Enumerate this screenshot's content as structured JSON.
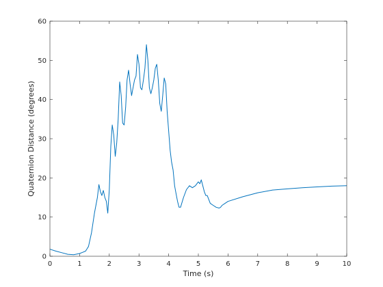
{
  "chart_data": {
    "type": "line",
    "title": "",
    "xlabel": "Time (s)",
    "ylabel": "Quaternion Distance (degrees)",
    "xlim": [
      0,
      10
    ],
    "ylim": [
      0,
      60
    ],
    "xticks": [
      0,
      1,
      2,
      3,
      4,
      5,
      6,
      7,
      8,
      9,
      10
    ],
    "yticks": [
      0,
      10,
      20,
      30,
      40,
      50,
      60
    ],
    "grid": false,
    "legend": "none",
    "series": [
      {
        "color": "#0072BD",
        "x": [
          0,
          0.2,
          0.4,
          0.6,
          0.8,
          1.0,
          1.1,
          1.2,
          1.3,
          1.4,
          1.5,
          1.6,
          1.65,
          1.7,
          1.75,
          1.8,
          1.85,
          1.9,
          1.95,
          2.0,
          2.05,
          2.1,
          2.15,
          2.2,
          2.25,
          2.3,
          2.35,
          2.4,
          2.45,
          2.5,
          2.55,
          2.6,
          2.65,
          2.7,
          2.75,
          2.8,
          2.85,
          2.9,
          2.95,
          3.0,
          3.05,
          3.1,
          3.15,
          3.2,
          3.25,
          3.3,
          3.35,
          3.4,
          3.45,
          3.5,
          3.55,
          3.6,
          3.65,
          3.7,
          3.75,
          3.8,
          3.85,
          3.9,
          3.95,
          4.0,
          4.05,
          4.1,
          4.15,
          4.2,
          4.25,
          4.3,
          4.35,
          4.4,
          4.5,
          4.6,
          4.7,
          4.8,
          4.9,
          5.0,
          5.05,
          5.1,
          5.15,
          5.2,
          5.25,
          5.3,
          5.4,
          5.5,
          5.6,
          5.7,
          5.75,
          5.8,
          5.9,
          6.0,
          6.5,
          7.0,
          7.5,
          8.0,
          8.5,
          9.0,
          9.5,
          10.0
        ],
        "y": [
          1.8,
          1.3,
          0.9,
          0.5,
          0.4,
          0.7,
          1.0,
          1.3,
          2.5,
          6,
          11,
          15,
          18.3,
          16.5,
          15.5,
          16.8,
          15,
          14,
          11,
          17,
          28,
          33.5,
          31,
          25.5,
          29,
          35,
          44.5,
          41,
          34,
          33.5,
          38,
          45,
          47.5,
          44,
          41,
          43,
          45,
          46,
          51.5,
          49,
          43,
          42.5,
          45,
          48,
          54,
          50,
          43,
          41.5,
          43,
          45,
          48,
          49,
          45,
          39,
          37,
          41,
          45.5,
          44,
          37,
          32,
          27,
          24,
          22,
          18,
          16,
          14,
          12.5,
          12.5,
          15,
          17,
          18,
          17.5,
          18,
          19,
          18.5,
          19.5,
          18,
          16.5,
          15.5,
          15.5,
          13.5,
          13,
          12.5,
          12.3,
          12.5,
          13,
          13.5,
          14,
          15.2,
          16.2,
          16.9,
          17.2,
          17.5,
          17.7,
          17.9,
          18
        ]
      }
    ]
  }
}
